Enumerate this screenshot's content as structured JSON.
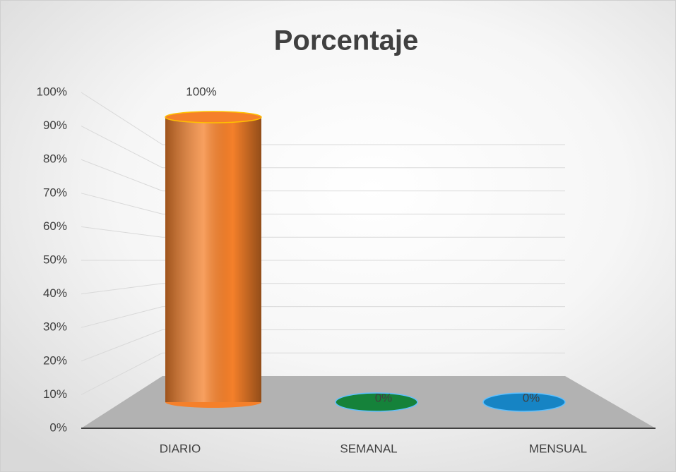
{
  "chart_data": {
    "type": "bar3d",
    "title": "Porcentaje",
    "categories": [
      "DIARIO",
      "SEMANAL",
      "MENSUAL"
    ],
    "values": [
      100,
      0,
      0
    ],
    "value_labels": [
      "100%",
      "0%",
      "0%"
    ],
    "colors": [
      "#f5802a",
      "#15823a",
      "#1684c4"
    ],
    "ylim": [
      0,
      100
    ],
    "yticks": [
      {
        "value": 0,
        "label": "0%"
      },
      {
        "value": 10,
        "label": "10%"
      },
      {
        "value": 20,
        "label": "20%"
      },
      {
        "value": 30,
        "label": "30%"
      },
      {
        "value": 40,
        "label": "40%"
      },
      {
        "value": 50,
        "label": "50%"
      },
      {
        "value": 60,
        "label": "60%"
      },
      {
        "value": 70,
        "label": "70%"
      },
      {
        "value": 80,
        "label": "80%"
      },
      {
        "value": 90,
        "label": "90%"
      },
      {
        "value": 100,
        "label": "100%"
      }
    ],
    "grid": true
  }
}
